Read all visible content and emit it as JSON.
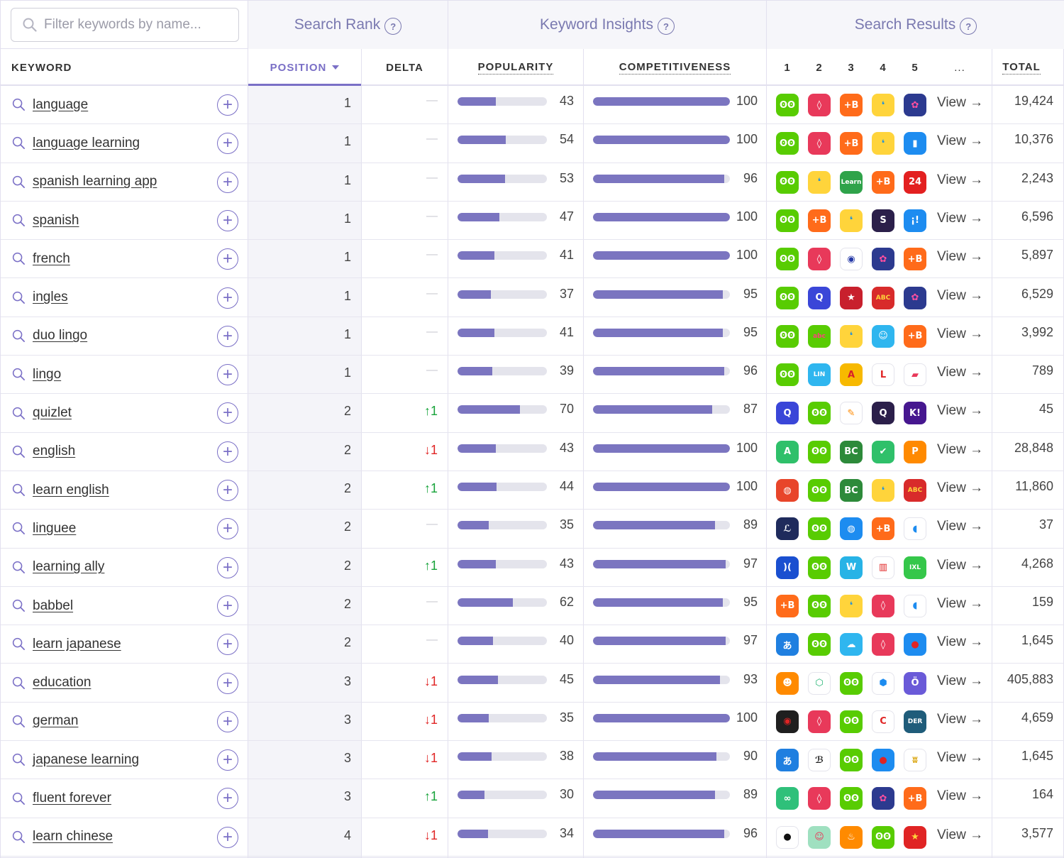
{
  "search": {
    "placeholder": "Filter keywords by name..."
  },
  "groups": {
    "search_rank": "Search Rank",
    "keyword_insights": "Keyword Insights",
    "search_results": "Search Results",
    "help": "?"
  },
  "columns": {
    "keyword": "KEYWORD",
    "position": "POSITION",
    "delta": "DELTA",
    "popularity": "POPULARITY",
    "competitiveness": "COMPETITIVENESS",
    "r1": "1",
    "r2": "2",
    "r3": "3",
    "r4": "4",
    "r5": "5",
    "more": "...",
    "total": "TOTAL"
  },
  "view_label": "View →",
  "colors": {
    "accent": "#7a6fc6",
    "bar": "#7b75c0",
    "up": "#17a33a",
    "down": "#e02424"
  },
  "apps": {
    "duolingo": {
      "bg": "#58cc02",
      "fg": "#ffffff",
      "glyph": "ʘʘ"
    },
    "tandem": {
      "bg": "#e8395a",
      "fg": "#ffffff",
      "glyph": "◊"
    },
    "babbel": {
      "bg": "#ff6b1a",
      "fg": "#ffffff",
      "glyph": "+B"
    },
    "busuu": {
      "bg": "#ffd43b",
      "fg": "#1a8fe0",
      "glyph": "❛"
    },
    "memrise": {
      "bg": "#2c3a8f",
      "fg": "#ff4fa0",
      "glyph": "✿"
    },
    "blue_square": {
      "bg": "#1d8cf0",
      "fg": "#ffffff",
      "glyph": "▮"
    },
    "learn_spanish": {
      "bg": "#2fa34a",
      "fg": "#ffffff",
      "glyph": "Learn"
    },
    "hours24": {
      "bg": "#e32020",
      "fg": "#ffffff",
      "glyph": "24"
    },
    "speechling": {
      "bg": "#2b1f4a",
      "fg": "#ffffff",
      "glyph": "S"
    },
    "exclaim": {
      "bg": "#1d8cf0",
      "fg": "#ffffff",
      "glyph": "¡!"
    },
    "french_flag": {
      "bg": "#ffffff",
      "fg": "#2438a6",
      "glyph": "◉"
    },
    "quizlet": {
      "bg": "#3a46d8",
      "fg": "#ffffff",
      "glyph": "Q"
    },
    "usa_flag": {
      "bg": "#c8202d",
      "fg": "#ffffff",
      "glyph": "★"
    },
    "abc_flag": {
      "bg": "#d82b2b",
      "fg": "#ffd43b",
      "glyph": "ABC"
    },
    "abc_kids": {
      "bg": "#58cc02",
      "fg": "#ff3f7f",
      "glyph": "abc"
    },
    "smiley": {
      "bg": "#2fb6ef",
      "fg": "#ffffff",
      "glyph": "☺"
    },
    "lingo_go": {
      "bg": "#2fb6ef",
      "fg": "#ffffff",
      "glyph": "LIN"
    },
    "lingo_game": {
      "bg": "#f7b900",
      "fg": "#d8202a",
      "glyph": "A"
    },
    "l_circle": {
      "bg": "#ffffff",
      "fg": "#e02424",
      "glyph": "L"
    },
    "cards": {
      "bg": "#ffffff",
      "fg": "#e8395a",
      "glyph": "▰"
    },
    "pencil": {
      "bg": "#ffffff",
      "fg": "#ff8a00",
      "glyph": "✎"
    },
    "q_dark": {
      "bg": "#2b1f4a",
      "fg": "#ffffff",
      "glyph": "Q"
    },
    "kahoot": {
      "bg": "#46178f",
      "fg": "#ffffff",
      "glyph": "K!"
    },
    "a_green": {
      "bg": "#2fc06a",
      "fg": "#ffffff",
      "glyph": "A"
    },
    "british": {
      "bg": "#2d8a3a",
      "fg": "#ffffff",
      "glyph": "BC"
    },
    "check": {
      "bg": "#2fc06a",
      "fg": "#ffffff",
      "glyph": "✔"
    },
    "p_orange": {
      "bg": "#ff8a00",
      "fg": "#ffffff",
      "glyph": "P"
    },
    "globe_red": {
      "bg": "#e8452a",
      "fg": "#ffffff",
      "glyph": "◍"
    },
    "l_script": {
      "bg": "#1f2b5c",
      "fg": "#ffffff",
      "glyph": "ℒ"
    },
    "globe_blue": {
      "bg": "#1d8cf0",
      "fg": "#ffffff",
      "glyph": "◍"
    },
    "mic": {
      "bg": "#ffffff",
      "fg": "#1d8cf0",
      "glyph": "◖"
    },
    "waves": {
      "bg": "#1a4fd0",
      "fg": "#ffffff",
      "glyph": ")("
    },
    "word_day": {
      "bg": "#27b3e6",
      "fg": "#ffffff",
      "glyph": "W"
    },
    "piano": {
      "bg": "#ffffff",
      "fg": "#e02424",
      "glyph": "▥"
    },
    "ixl": {
      "bg": "#35c74a",
      "fg": "#ffffff",
      "glyph": "IXL"
    },
    "hiragana": {
      "bg": "#1f7fe0",
      "fg": "#ffffff",
      "glyph": "あ"
    },
    "cloud": {
      "bg": "#2fb6ef",
      "fg": "#ffffff",
      "glyph": "☁"
    },
    "japan_flag": {
      "bg": "#1d8cf0",
      "fg": "#e02424",
      "glyph": "●"
    },
    "lightbulb": {
      "bg": "#ff8a00",
      "fg": "#ffffff",
      "glyph": "☻"
    },
    "hex_green": {
      "bg": "#ffffff",
      "fg": "#22b573",
      "glyph": "⬡"
    },
    "hex_blue": {
      "bg": "#ffffff",
      "fg": "#1d8cf0",
      "glyph": "⬢"
    },
    "owl": {
      "bg": "#6a5ad8",
      "fg": "#ffffff",
      "glyph": "Ö"
    },
    "germany": {
      "bg": "#1f1f1f",
      "fg": "#e02424",
      "glyph": "◉"
    },
    "c_red": {
      "bg": "#ffffff",
      "fg": "#e02424",
      "glyph": "C"
    },
    "der_die_das": {
      "bg": "#1f5c7a",
      "fg": "#ffffff",
      "glyph": "DER"
    },
    "script_b": {
      "bg": "#ffffff",
      "fg": "#222222",
      "glyph": "ℬ"
    },
    "moose": {
      "bg": "#ffffff",
      "fg": "#d8a000",
      "glyph": "ʬ"
    },
    "loop": {
      "bg": "#2fc07a",
      "fg": "#ffffff",
      "glyph": "∞"
    },
    "panda": {
      "bg": "#ffffff",
      "fg": "#111111",
      "glyph": "●"
    },
    "face": {
      "bg": "#9fe0c0",
      "fg": "#e8395a",
      "glyph": "☺"
    },
    "flame": {
      "bg": "#ff8a00",
      "fg": "#ffffff",
      "glyph": "♨"
    },
    "china": {
      "bg": "#e02424",
      "fg": "#ffd43b",
      "glyph": "★"
    }
  },
  "rows": [
    {
      "keyword": "language",
      "position": "1",
      "delta": "—",
      "delta_dir": "none",
      "popularity": 43,
      "competitiveness": 100,
      "total": "19,424",
      "apps": [
        "duolingo",
        "tandem",
        "babbel",
        "busuu",
        "memrise"
      ]
    },
    {
      "keyword": "language learning",
      "position": "1",
      "delta": "—",
      "delta_dir": "none",
      "popularity": 54,
      "competitiveness": 100,
      "total": "10,376",
      "apps": [
        "duolingo",
        "tandem",
        "babbel",
        "busuu",
        "blue_square"
      ]
    },
    {
      "keyword": "spanish learning app",
      "position": "1",
      "delta": "—",
      "delta_dir": "none",
      "popularity": 53,
      "competitiveness": 96,
      "total": "2,243",
      "apps": [
        "duolingo",
        "busuu",
        "learn_spanish",
        "babbel",
        "hours24"
      ]
    },
    {
      "keyword": "spanish",
      "position": "1",
      "delta": "—",
      "delta_dir": "none",
      "popularity": 47,
      "competitiveness": 100,
      "total": "6,596",
      "apps": [
        "duolingo",
        "babbel",
        "busuu",
        "speechling",
        "exclaim"
      ]
    },
    {
      "keyword": "french",
      "position": "1",
      "delta": "—",
      "delta_dir": "none",
      "popularity": 41,
      "competitiveness": 100,
      "total": "5,897",
      "apps": [
        "duolingo",
        "tandem",
        "french_flag",
        "memrise",
        "babbel"
      ]
    },
    {
      "keyword": "ingles",
      "position": "1",
      "delta": "—",
      "delta_dir": "none",
      "popularity": 37,
      "competitiveness": 95,
      "total": "6,529",
      "apps": [
        "duolingo",
        "quizlet",
        "usa_flag",
        "abc_flag",
        "memrise"
      ]
    },
    {
      "keyword": "duo lingo",
      "position": "1",
      "delta": "—",
      "delta_dir": "none",
      "popularity": 41,
      "competitiveness": 95,
      "total": "3,992",
      "apps": [
        "duolingo",
        "abc_kids",
        "busuu",
        "smiley",
        "babbel"
      ]
    },
    {
      "keyword": "lingo",
      "position": "1",
      "delta": "—",
      "delta_dir": "none",
      "popularity": 39,
      "competitiveness": 96,
      "total": "789",
      "apps": [
        "duolingo",
        "lingo_go",
        "lingo_game",
        "l_circle",
        "cards"
      ]
    },
    {
      "keyword": "quizlet",
      "position": "2",
      "delta": "↑1",
      "delta_dir": "up",
      "popularity": 70,
      "competitiveness": 87,
      "total": "45",
      "apps": [
        "quizlet",
        "duolingo",
        "pencil",
        "q_dark",
        "kahoot"
      ]
    },
    {
      "keyword": "english",
      "position": "2",
      "delta": "↓1",
      "delta_dir": "down",
      "popularity": 43,
      "competitiveness": 100,
      "total": "28,848",
      "apps": [
        "a_green",
        "duolingo",
        "british",
        "check",
        "p_orange"
      ]
    },
    {
      "keyword": "learn english",
      "position": "2",
      "delta": "↑1",
      "delta_dir": "up",
      "popularity": 44,
      "competitiveness": 100,
      "total": "11,860",
      "apps": [
        "globe_red",
        "duolingo",
        "british",
        "busuu",
        "abc_flag"
      ]
    },
    {
      "keyword": "linguee",
      "position": "2",
      "delta": "—",
      "delta_dir": "none",
      "popularity": 35,
      "competitiveness": 89,
      "total": "37",
      "apps": [
        "l_script",
        "duolingo",
        "globe_blue",
        "babbel",
        "mic"
      ]
    },
    {
      "keyword": "learning ally",
      "position": "2",
      "delta": "↑1",
      "delta_dir": "up",
      "popularity": 43,
      "competitiveness": 97,
      "total": "4,268",
      "apps": [
        "waves",
        "duolingo",
        "word_day",
        "piano",
        "ixl"
      ]
    },
    {
      "keyword": "babbel",
      "position": "2",
      "delta": "—",
      "delta_dir": "none",
      "popularity": 62,
      "competitiveness": 95,
      "total": "159",
      "apps": [
        "babbel",
        "duolingo",
        "busuu",
        "tandem",
        "mic"
      ]
    },
    {
      "keyword": "learn japanese",
      "position": "2",
      "delta": "—",
      "delta_dir": "none",
      "popularity": 40,
      "competitiveness": 97,
      "total": "1,645",
      "apps": [
        "hiragana",
        "duolingo",
        "cloud",
        "tandem",
        "japan_flag"
      ]
    },
    {
      "keyword": "education",
      "position": "3",
      "delta": "↓1",
      "delta_dir": "down",
      "popularity": 45,
      "competitiveness": 93,
      "total": "405,883",
      "apps": [
        "lightbulb",
        "hex_green",
        "duolingo",
        "hex_blue",
        "owl"
      ]
    },
    {
      "keyword": "german",
      "position": "3",
      "delta": "↓1",
      "delta_dir": "down",
      "popularity": 35,
      "competitiveness": 100,
      "total": "4,659",
      "apps": [
        "germany",
        "tandem",
        "duolingo",
        "c_red",
        "der_die_das"
      ]
    },
    {
      "keyword": "japanese learning",
      "position": "3",
      "delta": "↓1",
      "delta_dir": "down",
      "popularity": 38,
      "competitiveness": 90,
      "total": "1,645",
      "apps": [
        "hiragana",
        "script_b",
        "duolingo",
        "japan_flag",
        "moose"
      ]
    },
    {
      "keyword": "fluent forever",
      "position": "3",
      "delta": "↑1",
      "delta_dir": "up",
      "popularity": 30,
      "competitiveness": 89,
      "total": "164",
      "apps": [
        "loop",
        "tandem",
        "duolingo",
        "memrise",
        "babbel"
      ]
    },
    {
      "keyword": "learn chinese",
      "position": "4",
      "delta": "↓1",
      "delta_dir": "down",
      "popularity": 34,
      "competitiveness": 96,
      "total": "3,577",
      "apps": [
        "panda",
        "face",
        "flame",
        "duolingo",
        "china"
      ]
    }
  ]
}
